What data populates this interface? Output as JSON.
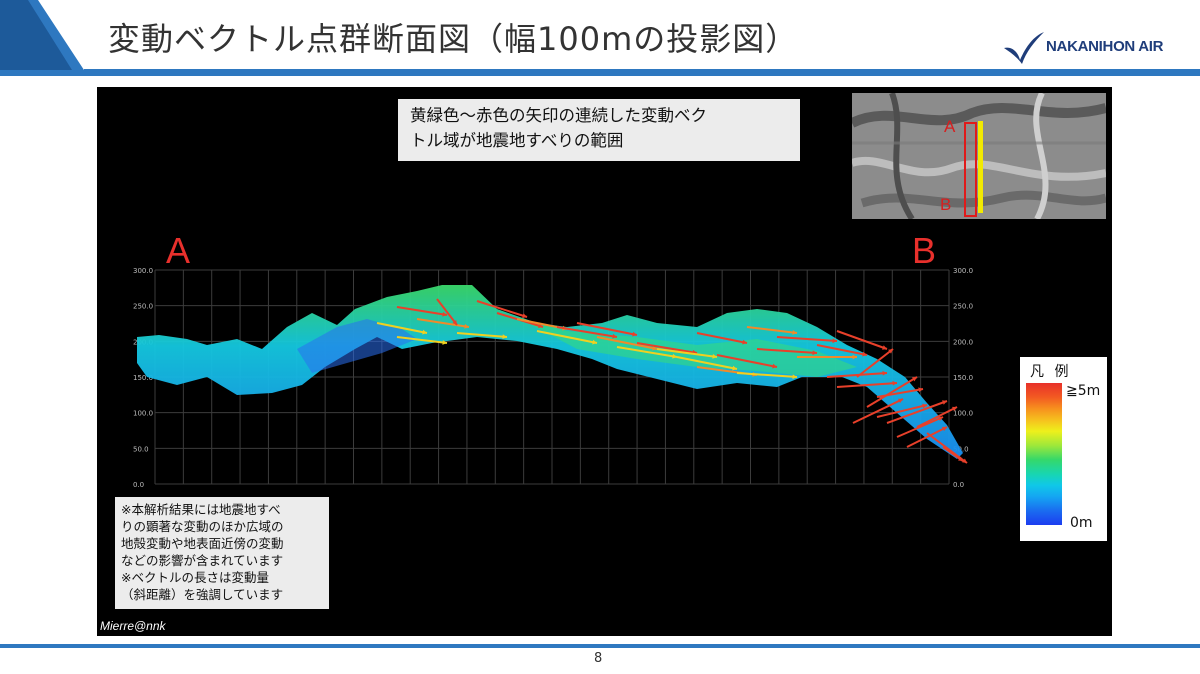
{
  "slide": {
    "title": "変動ベクトル点群断面図（幅100mの投影図）",
    "logo_text": "NAKANIHON AIR",
    "page_number": "8"
  },
  "figure": {
    "callout_lines": [
      "黄緑色～赤色の矢印の連続した変動ベク",
      "トル域が地震地すべりの範囲"
    ],
    "section_start_label": "A",
    "section_end_label": "B",
    "inset_start_label": "A",
    "inset_end_label": "B",
    "elevation_ticks": [
      "300.0",
      "250.0",
      "200.0",
      "150.0",
      "100.0",
      "50.0",
      "0.0"
    ],
    "note_lines": [
      "※本解析結果には地震地すべ",
      "りの顕著な変動のほか広域の",
      "地殻変動や地表面近傍の変動",
      "などの影響が含まれています",
      "※ベクトルの長さは変動量",
      "（斜距離）を強調しています"
    ],
    "credit": "Mierre@nnk"
  },
  "legend": {
    "title": "凡 例",
    "max_label": "≧5m",
    "min_label": "0m"
  },
  "colors": {
    "brand_blue": "#2e78c0",
    "logo_navy": "#1f3d7a",
    "label_red": "#e8302c",
    "vector_red": "#e8402a",
    "vector_yellow": "#f0d020"
  }
}
